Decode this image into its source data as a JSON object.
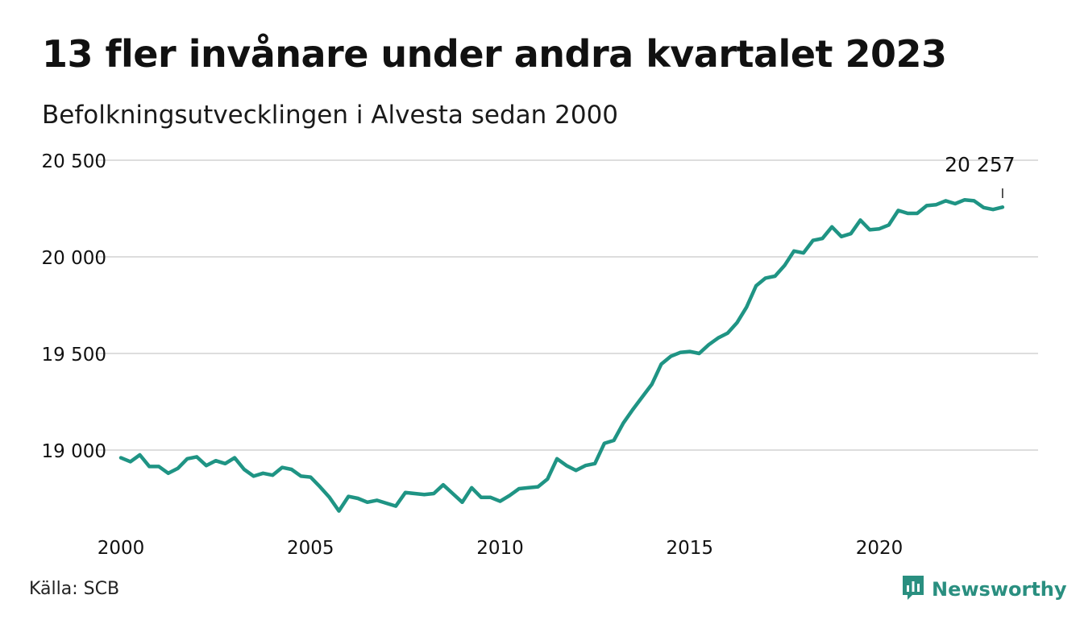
{
  "title": "13 fler invånare under andra kvartalet 2023",
  "subtitle": "Befolkningsutvecklingen i Alvesta sedan 2000",
  "source": "Källa: SCB",
  "brand": {
    "name": "Newsworthy",
    "icon": "newsworthy-logo-icon",
    "color": "#2a8f80"
  },
  "colors": {
    "line": "#1f9484",
    "grid": "#dddddd"
  },
  "chart_data": {
    "type": "line",
    "title": "13 fler invånare under andra kvartalet 2023",
    "subtitle": "Befolkningsutvecklingen i Alvesta sedan 2000",
    "xlabel": "",
    "ylabel": "",
    "ylim": [
      18600,
      20500
    ],
    "xlim": [
      2000,
      2023.5
    ],
    "y_ticks": [
      19000,
      19500,
      20000,
      20500
    ],
    "y_tick_labels": [
      "19 000",
      "19 500",
      "20 000",
      "20 500"
    ],
    "x_ticks": [
      2000,
      2005,
      2010,
      2015,
      2020
    ],
    "x_tick_labels": [
      "2000",
      "2005",
      "2010",
      "2015",
      "2020"
    ],
    "grid": true,
    "annotation": {
      "x": 2023.25,
      "y": 20257,
      "label": "20 257"
    },
    "series": [
      {
        "name": "",
        "x": [
          2000.0,
          2000.25,
          2000.5,
          2000.75,
          2001.0,
          2001.25,
          2001.5,
          2001.75,
          2002.0,
          2002.25,
          2002.5,
          2002.75,
          2003.0,
          2003.25,
          2003.5,
          2003.75,
          2004.0,
          2004.25,
          2004.5,
          2004.75,
          2005.0,
          2005.25,
          2005.5,
          2005.75,
          2006.0,
          2006.25,
          2006.5,
          2006.75,
          2007.0,
          2007.25,
          2007.5,
          2007.75,
          2008.0,
          2008.25,
          2008.5,
          2008.75,
          2009.0,
          2009.25,
          2009.5,
          2009.75,
          2010.0,
          2010.25,
          2010.5,
          2010.75,
          2011.0,
          2011.25,
          2011.5,
          2011.75,
          2012.0,
          2012.25,
          2012.5,
          2012.75,
          2013.0,
          2013.25,
          2013.5,
          2013.75,
          2014.0,
          2014.25,
          2014.5,
          2014.75,
          2015.0,
          2015.25,
          2015.5,
          2015.75,
          2016.0,
          2016.25,
          2016.5,
          2016.75,
          2017.0,
          2017.25,
          2017.5,
          2017.75,
          2018.0,
          2018.25,
          2018.5,
          2018.75,
          2019.0,
          2019.25,
          2019.5,
          2019.75,
          2020.0,
          2020.25,
          2020.5,
          2020.75,
          2021.0,
          2021.25,
          2021.5,
          2021.75,
          2022.0,
          2022.25,
          2022.5,
          2022.75,
          2023.0,
          2023.25
        ],
        "values": [
          18960,
          18940,
          18975,
          18915,
          18915,
          18880,
          18905,
          18955,
          18965,
          18920,
          18945,
          18930,
          18960,
          18900,
          18865,
          18880,
          18870,
          18910,
          18900,
          18865,
          18860,
          18810,
          18755,
          18685,
          18760,
          18750,
          18730,
          18740,
          18725,
          18710,
          18780,
          18775,
          18770,
          18775,
          18820,
          18775,
          18730,
          18805,
          18755,
          18755,
          18735,
          18765,
          18800,
          18805,
          18810,
          18850,
          18955,
          18920,
          18895,
          18920,
          18930,
          19035,
          19050,
          19140,
          19210,
          19275,
          19340,
          19445,
          19485,
          19505,
          19510,
          19500,
          19545,
          19580,
          19605,
          19660,
          19740,
          19850,
          19890,
          19900,
          19955,
          20030,
          20020,
          20085,
          20095,
          20155,
          20105,
          20120,
          20190,
          20140,
          20145,
          20165,
          20240,
          20225,
          20225,
          20265,
          20270,
          20290,
          20275,
          20295,
          20290,
          20255,
          20245,
          20257
        ]
      }
    ]
  }
}
